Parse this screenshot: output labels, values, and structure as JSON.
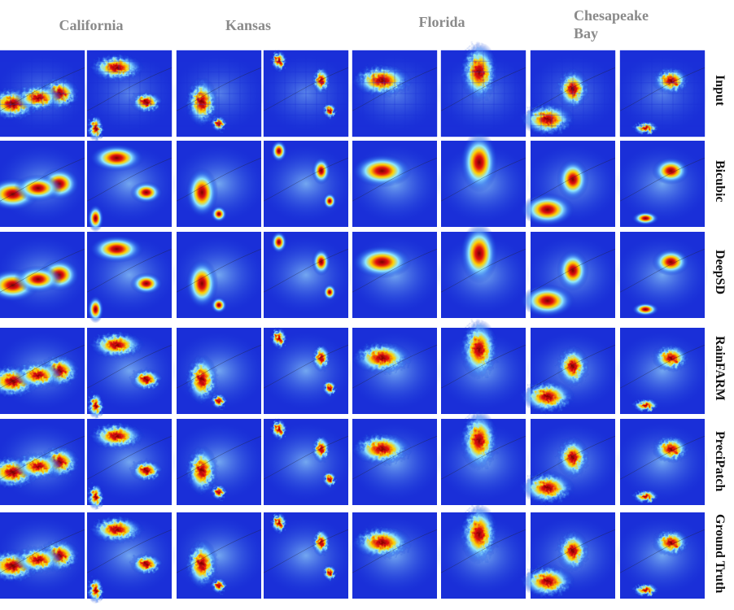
{
  "columns": [
    "California",
    "Kansas",
    "Florida",
    "Chesapeake Bay"
  ],
  "rows": [
    "Input",
    "Bicubic",
    "DeepSD",
    "RainFARM",
    "PreciPatch",
    "Ground Truth"
  ]
}
